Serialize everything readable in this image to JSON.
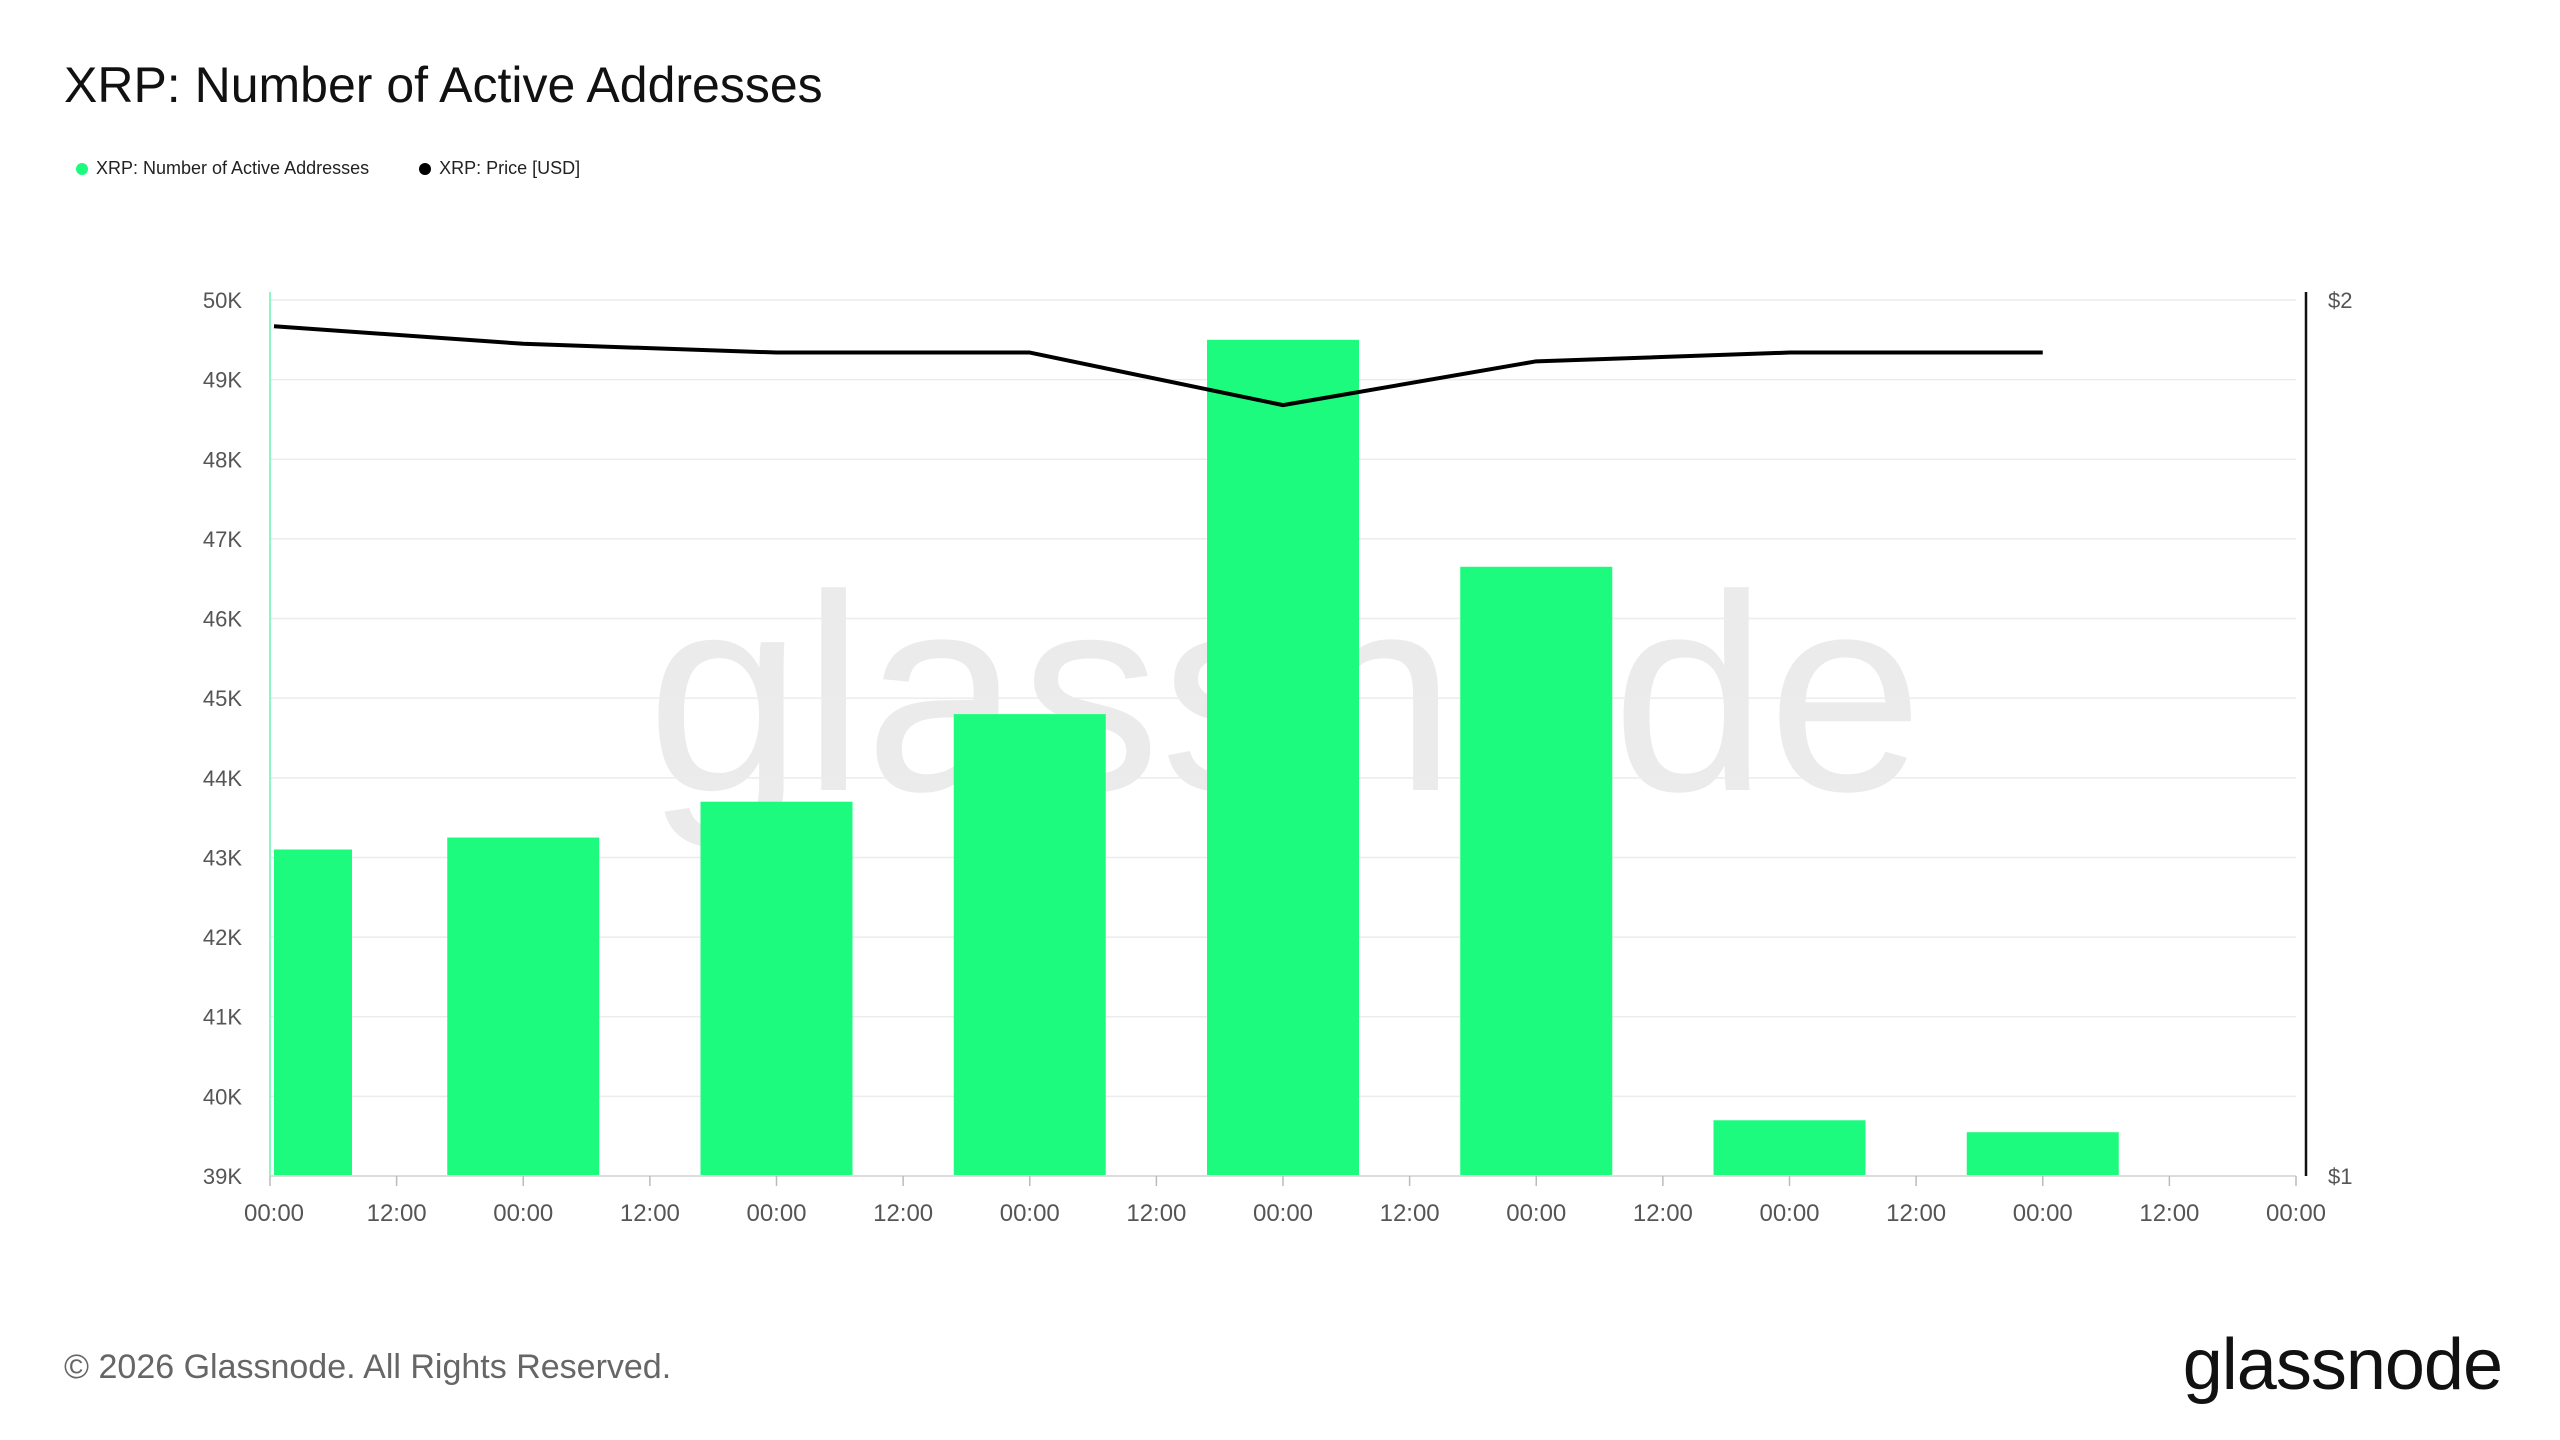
{
  "title": "XRP: Number of Active Addresses",
  "legend": [
    {
      "label": "XRP: Number of Active Addresses",
      "color": "#1dfb7f"
    },
    {
      "label": "XRP: Price [USD]",
      "color": "#000000"
    }
  ],
  "watermark": "glassnode",
  "footer": {
    "copyright": "© 2026 Glassnode. All Rights Reserved.",
    "brand": "glassnode"
  },
  "chart_data": {
    "type": "bar",
    "x_tick_labels": [
      "00:00",
      "12:00",
      "00:00",
      "12:00",
      "00:00",
      "12:00",
      "00:00",
      "12:00",
      "00:00",
      "12:00",
      "00:00",
      "12:00",
      "00:00",
      "12:00",
      "00:00",
      "12:00",
      "00:00"
    ],
    "y_tick_labels": [
      "50K",
      "49K",
      "48K",
      "47K",
      "46K",
      "45K",
      "44K",
      "43K",
      "42K",
      "41K",
      "40K",
      "39K"
    ],
    "y2_tick_labels": [
      "$2",
      "$1"
    ],
    "ylim": [
      39000,
      50000
    ],
    "y2lim": [
      1,
      2
    ],
    "series": [
      {
        "name": "XRP: Number of Active Addresses",
        "type": "bar",
        "color": "#1dfb7f",
        "values": [
          43100,
          43250,
          43700,
          44800,
          49500,
          46650,
          39700,
          39550
        ]
      },
      {
        "name": "XRP: Price [USD]",
        "type": "line",
        "color": "#000000",
        "values": [
          1.97,
          1.95,
          1.94,
          1.94,
          1.88,
          1.93,
          1.94,
          1.94
        ]
      }
    ]
  }
}
